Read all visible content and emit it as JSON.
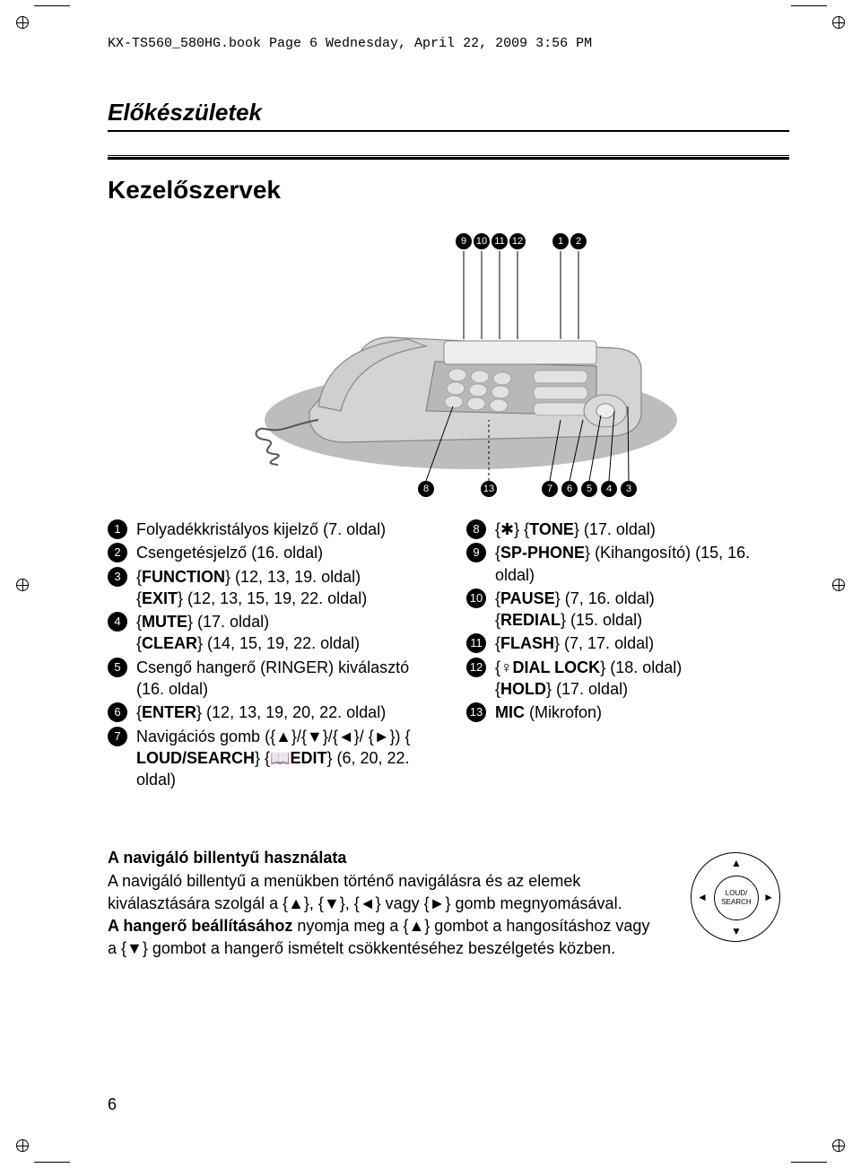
{
  "meta": {
    "header_text": "KX-TS560_580HG.book  Page 6  Wednesday, April 22, 2009  3:56 PM"
  },
  "section": {
    "header": "Előkészületek",
    "title": "Kezelőszervek"
  },
  "diagram": {
    "top_labels": [
      "9",
      "10",
      "11",
      "12",
      "1",
      "2"
    ],
    "bottom_labels": [
      "8",
      "13",
      "7",
      "6",
      "5",
      "4",
      "3"
    ]
  },
  "legend_left": [
    {
      "n": "1",
      "text": "Folyadékkristályos kijelző (7. oldal)"
    },
    {
      "n": "2",
      "text": "Csengetésjelző (16. oldal)"
    },
    {
      "n": "3",
      "html": "{<b>FUNCTION</b>} (12, 13, 19. oldal)<br>{<b>EXIT</b>} (12, 13, 15, 19, 22. oldal)"
    },
    {
      "n": "4",
      "html": "{<b>MUTE</b>} (17. oldal)<br>{<b>CLEAR</b>} (14, 15, 19, 22. oldal)"
    },
    {
      "n": "5",
      "text": "Csengő hangerő (RINGER) kiválasztó (16. oldal)"
    },
    {
      "n": "6",
      "html": "{<b>ENTER</b>} (12, 13, 19, 20, 22. oldal)"
    },
    {
      "n": "7",
      "html": "Navigációs gomb ({▲}/{▼}/{◄}/ {►}) {<b>LOUD/SEARCH</b>} {<b>📖EDIT</b>} (6, 20, 22. oldal)"
    }
  ],
  "legend_right": [
    {
      "n": "8",
      "html": "{✱} {<b>TONE</b>} (17. oldal)"
    },
    {
      "n": "9",
      "html": "{<b>SP-PHONE</b>} (Kihangosító) (15, 16. oldal)"
    },
    {
      "n": "10",
      "html": "{<b>PAUSE</b>} (7, 16. oldal)<br>{<b>REDIAL</b>} (15. oldal)"
    },
    {
      "n": "11",
      "html": "{<b>FLASH</b>} (7, 17. oldal)"
    },
    {
      "n": "12",
      "html": "{<b>♀DIAL LOCK</b>} (18. oldal)<br>{<b>HOLD</b>} (17. oldal)"
    },
    {
      "n": "13",
      "html": "<b>MIC</b> (Mikrofon)"
    }
  ],
  "nav_section": {
    "title": "A navigáló billentyű használata",
    "body_html": "A navigáló billentyű a menükben történő navigálásra és az elemek kiválasztására szolgál a {▲}, {▼}, {◄} vagy {►} gomb megnyomásával.<br><b>A hangerő beállításához</b> nyomja meg a {▲} gombot a hangosításhoz vagy a {▼} gombot a hangerő ismételt csökkentéséhez beszélgetés közben.",
    "pad_label_top": "LOUD/",
    "pad_label_bottom": "SEARCH"
  },
  "page_number": "6",
  "colors": {
    "text": "#000000",
    "bg": "#ffffff",
    "phone_body": "#c9c9c9",
    "phone_shadow": "#888888",
    "phone_dark": "#6b6b6b"
  }
}
